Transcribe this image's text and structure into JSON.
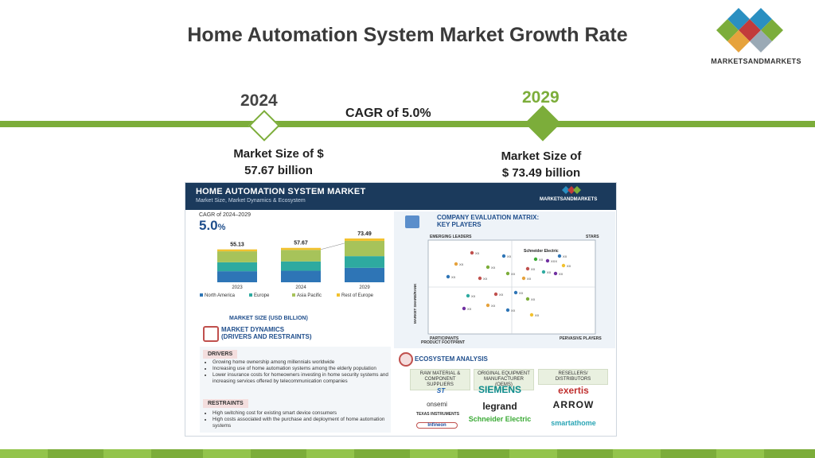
{
  "title": "Home Automation System Market Growth Rate",
  "brand": {
    "name": "MARKETSANDMARKETS",
    "colors": [
      "#2a8fc1",
      "#c23b3b",
      "#7cad3a",
      "#e6a23c"
    ]
  },
  "timeline": {
    "year_left": "2024",
    "year_right": "2029",
    "cagr": "CAGR of 5.0%",
    "size_left_line1": "Market Size of $",
    "size_left_line2": "57.67 billion",
    "size_right_line1": "Market Size of",
    "size_right_line2": "$ 73.49 billion",
    "accent": "#7cad3a"
  },
  "panel": {
    "title": "HOME AUTOMATION SYSTEM MARKET",
    "subtitle": "Market Size, Market Dynamics & Ecosystem",
    "brand": "MARKETSANDMARKETS",
    "cagr_label": "CAGR of 2024–2029",
    "cagr_value": "5.0",
    "cagr_unit": "%",
    "chart_caption": "MARKET SIZE (USD BILLION)",
    "dynamics_title_1": "MARKET DYNAMICS",
    "dynamics_title_2": "(DRIVERS AND RESTRAINTS)",
    "drivers_label": "DRIVERS",
    "drivers": [
      "Growing home ownership among millennials worldwide",
      "Increasing use of home automation systems among the elderly population",
      "Lower insurance costs for homeowners investing in home security systems and increasing services offered by telecommunication companies"
    ],
    "restraints_label": "RESTRAINTS",
    "restraints": [
      "High switching cost for existing smart device consumers",
      "High costs associated with the purchase and deployment of home automation systems"
    ],
    "matrix_title_1": "COMPANY EVALUATION MATRIX:",
    "matrix_title_2": "KEY PLAYERS",
    "matrix": {
      "emerging": "EMERGING LEADERS",
      "stars": "STARS",
      "participants": "PARTICIPANTS",
      "pervasive": "PERVASIVE PLAYERS",
      "yaxis": "MARKET SHARE/RANK",
      "xaxis": "PRODUCT FOOTPRINT",
      "highlight": "Schneider Electric",
      "point_label": "XX",
      "star_label": "XXX"
    },
    "eco_title": "ECOSYSTEM ANALYSIS",
    "eco_heads": [
      "RAW MATERIAL & COMPONENT SUPPLIERS",
      "ORIGINAL EQUIPMENT MANUFACTURER (OEMS)",
      "RESELLERS/ DISTRIBUTORS"
    ],
    "eco_col1": [
      "ST",
      "onsemi",
      "TEXAS INSTRUMENTS",
      "Infineon"
    ],
    "eco_col2": [
      "SIEMENS",
      "legrand",
      "Schneider Electric"
    ],
    "eco_col3": [
      "exertis",
      "ARROW",
      "smartathome"
    ]
  },
  "chart_data": {
    "type": "bar",
    "categories": [
      "2023",
      "2024",
      "2029"
    ],
    "totals": [
      55.13,
      57.67,
      73.49
    ],
    "series": [
      {
        "name": "North America",
        "values": [
          18.5,
          19.3,
          24.2
        ],
        "color": "#2e75b6"
      },
      {
        "name": "Europe",
        "values": [
          15.0,
          15.7,
          19.6
        ],
        "color": "#2eaaa0"
      },
      {
        "name": "Asia Pacific",
        "values": [
          18.4,
          19.2,
          25.6
        ],
        "color": "#a7c35a"
      },
      {
        "name": "Rest of Europe",
        "values": [
          3.23,
          3.47,
          4.09
        ],
        "color": "#f2c12e"
      }
    ],
    "xlabel": "",
    "ylabel": "",
    "legend": "bottom",
    "grid": false
  }
}
